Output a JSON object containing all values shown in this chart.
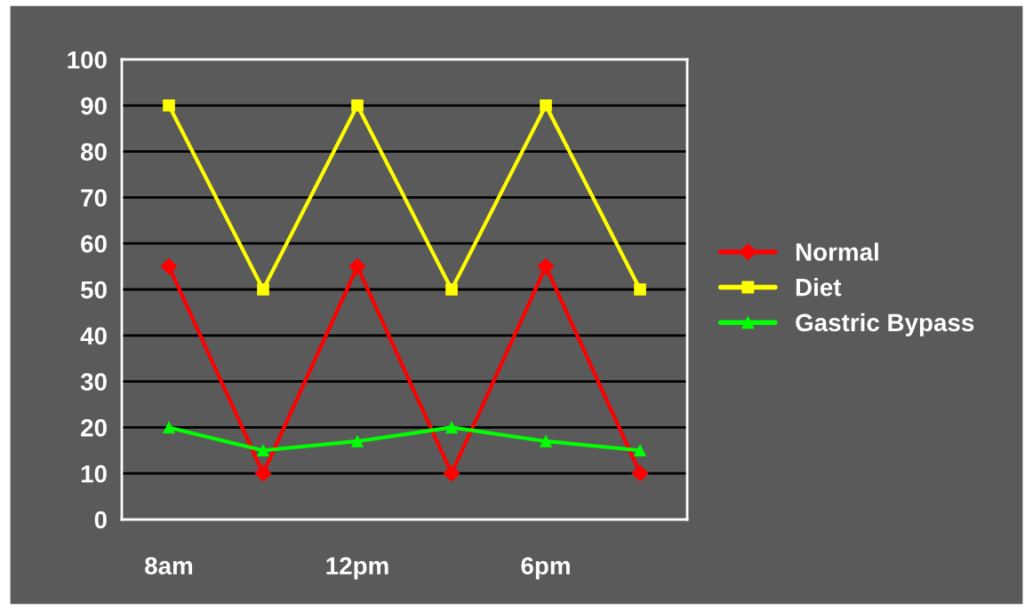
{
  "chart_data": {
    "type": "line",
    "categories": [
      "8am",
      null,
      "12pm",
      null,
      "6pm",
      null
    ],
    "series": [
      {
        "name": "Normal",
        "color": "#ff0000",
        "marker": "diamond",
        "values": [
          55,
          10,
          55,
          10,
          55,
          10
        ]
      },
      {
        "name": "Diet",
        "color": "#ffff00",
        "marker": "square",
        "values": [
          90,
          50,
          90,
          50,
          90,
          50
        ]
      },
      {
        "name": "Gastric Bypass",
        "color": "#00ff00",
        "marker": "triangle",
        "values": [
          20,
          15,
          17,
          20,
          17,
          15
        ]
      }
    ],
    "ylim": [
      0,
      100
    ],
    "yticks": [
      0,
      10,
      20,
      30,
      40,
      50,
      60,
      70,
      80,
      90,
      100
    ],
    "grid": "y",
    "legend": "right",
    "line_style": "solid"
  }
}
